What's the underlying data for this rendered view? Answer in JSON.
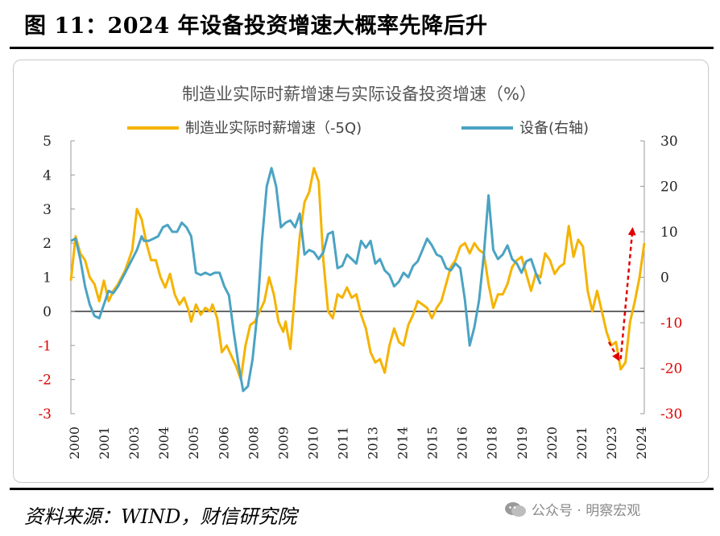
{
  "figure_title": "图 11：2024 年设备投资增速大概率先降后升",
  "source": "资料来源：WIND，财信研究院",
  "watermark": "公众号 · 明察宏观",
  "colors": {
    "series1": "#F5B300",
    "series2": "#4BA3C3",
    "arrow": "#E00000",
    "negative_tick": "#E00000"
  },
  "chart_data": {
    "type": "line",
    "title": "制造业实际时薪增速与实际设备投资增速（%）",
    "legend_position": "top",
    "grid": false,
    "x_ticks": [
      "2000",
      "2001",
      "2003",
      "2004",
      "2005",
      "2006",
      "2008",
      "2009",
      "2010",
      "2011",
      "2013",
      "2014",
      "2015",
      "2016",
      "2018",
      "2019",
      "2020",
      "2021",
      "2023",
      "2024"
    ],
    "y_left": {
      "range": [
        -3,
        5
      ],
      "ticks": [
        "5",
        "4",
        "3",
        "2",
        "1",
        "0",
        "-1",
        "-2",
        "-3"
      ]
    },
    "y_right": {
      "range": [
        -30,
        30
      ],
      "ticks": [
        "30",
        "20",
        "10",
        "0",
        "-10",
        "-20",
        "-30"
      ]
    },
    "series": [
      {
        "name": "制造业实际时薪增速（-5Q)",
        "axis": "left",
        "color": "#F5B300",
        "points": [
          [
            2000.0,
            0.9
          ],
          [
            2000.2,
            2.2
          ],
          [
            2000.4,
            1.7
          ],
          [
            2000.6,
            1.5
          ],
          [
            2000.8,
            1.0
          ],
          [
            2001.0,
            0.8
          ],
          [
            2001.2,
            0.3
          ],
          [
            2001.4,
            0.9
          ],
          [
            2001.6,
            0.3
          ],
          [
            2001.8,
            0.6
          ],
          [
            2002.0,
            0.8
          ],
          [
            2002.3,
            1.2
          ],
          [
            2002.6,
            1.8
          ],
          [
            2002.8,
            3.0
          ],
          [
            2003.0,
            2.7
          ],
          [
            2003.2,
            2.0
          ],
          [
            2003.4,
            1.5
          ],
          [
            2003.6,
            1.5
          ],
          [
            2003.8,
            1.0
          ],
          [
            2004.0,
            0.7
          ],
          [
            2004.2,
            1.1
          ],
          [
            2004.4,
            0.5
          ],
          [
            2004.6,
            0.2
          ],
          [
            2004.8,
            0.4
          ],
          [
            2005.0,
            0.0
          ],
          [
            2005.1,
            -0.3
          ],
          [
            2005.3,
            0.2
          ],
          [
            2005.5,
            -0.1
          ],
          [
            2005.7,
            0.1
          ],
          [
            2005.9,
            0.0
          ],
          [
            2006.0,
            0.2
          ],
          [
            2006.2,
            -0.2
          ],
          [
            2006.4,
            -1.2
          ],
          [
            2006.6,
            -1.0
          ],
          [
            2006.8,
            -1.3
          ],
          [
            2007.0,
            -1.6
          ],
          [
            2007.2,
            -2.0
          ],
          [
            2007.4,
            -1.0
          ],
          [
            2007.6,
            -0.4
          ],
          [
            2007.8,
            -0.3
          ],
          [
            2008.0,
            0.0
          ],
          [
            2008.2,
            0.3
          ],
          [
            2008.4,
            1.0
          ],
          [
            2008.6,
            0.5
          ],
          [
            2008.8,
            -0.3
          ],
          [
            2009.0,
            -0.6
          ],
          [
            2009.1,
            -0.3
          ],
          [
            2009.3,
            -1.1
          ],
          [
            2009.5,
            0.6
          ],
          [
            2009.7,
            2.2
          ],
          [
            2009.9,
            3.2
          ],
          [
            2010.1,
            3.5
          ],
          [
            2010.3,
            4.2
          ],
          [
            2010.5,
            3.8
          ],
          [
            2010.7,
            1.5
          ],
          [
            2010.9,
            0.0
          ],
          [
            2011.1,
            -0.2
          ],
          [
            2011.3,
            0.5
          ],
          [
            2011.5,
            0.4
          ],
          [
            2011.7,
            0.7
          ],
          [
            2011.9,
            0.4
          ],
          [
            2012.1,
            0.5
          ],
          [
            2012.3,
            -0.1
          ],
          [
            2012.5,
            -0.5
          ],
          [
            2012.7,
            -1.2
          ],
          [
            2012.9,
            -1.5
          ],
          [
            2013.1,
            -1.4
          ],
          [
            2013.3,
            -1.8
          ],
          [
            2013.5,
            -1.0
          ],
          [
            2013.7,
            -0.5
          ],
          [
            2013.9,
            -0.9
          ],
          [
            2014.1,
            -1.0
          ],
          [
            2014.3,
            -0.4
          ],
          [
            2014.5,
            -0.1
          ],
          [
            2014.7,
            0.3
          ],
          [
            2014.9,
            0.2
          ],
          [
            2015.1,
            0.1
          ],
          [
            2015.3,
            -0.2
          ],
          [
            2015.5,
            0.1
          ],
          [
            2015.7,
            0.3
          ],
          [
            2015.9,
            0.8
          ],
          [
            2016.1,
            1.3
          ],
          [
            2016.3,
            1.5
          ],
          [
            2016.5,
            1.9
          ],
          [
            2016.7,
            2.0
          ],
          [
            2016.9,
            1.7
          ],
          [
            2017.1,
            2.0
          ],
          [
            2017.3,
            1.8
          ],
          [
            2017.5,
            1.7
          ],
          [
            2017.7,
            0.8
          ],
          [
            2017.9,
            0.1
          ],
          [
            2018.1,
            0.5
          ],
          [
            2018.3,
            0.5
          ],
          [
            2018.5,
            0.8
          ],
          [
            2018.7,
            1.3
          ],
          [
            2018.9,
            1.5
          ],
          [
            2019.1,
            1.6
          ],
          [
            2019.3,
            1.1
          ],
          [
            2019.5,
            0.6
          ],
          [
            2019.7,
            1.1
          ],
          [
            2019.9,
            1.0
          ],
          [
            2020.1,
            1.7
          ],
          [
            2020.3,
            1.5
          ],
          [
            2020.5,
            1.1
          ],
          [
            2020.7,
            1.3
          ],
          [
            2020.9,
            1.4
          ],
          [
            2021.1,
            2.5
          ],
          [
            2021.3,
            1.6
          ],
          [
            2021.5,
            2.1
          ],
          [
            2021.7,
            1.9
          ],
          [
            2021.9,
            0.6
          ],
          [
            2022.1,
            0.0
          ],
          [
            2022.3,
            0.6
          ],
          [
            2022.5,
            0.0
          ],
          [
            2022.7,
            -0.6
          ],
          [
            2022.9,
            -1.0
          ],
          [
            2023.1,
            -0.9
          ],
          [
            2023.3,
            -1.7
          ],
          [
            2023.5,
            -1.5
          ],
          [
            2023.7,
            -0.3
          ],
          [
            2023.9,
            0.3
          ],
          [
            2024.1,
            1.0
          ],
          [
            2024.3,
            2.0
          ]
        ]
      },
      {
        "name": "设备(右轴)",
        "axis": "right",
        "color": "#4BA3C3",
        "points": [
          [
            2000.0,
            8.0
          ],
          [
            2000.2,
            8.5
          ],
          [
            2000.4,
            4.0
          ],
          [
            2000.6,
            -2.0
          ],
          [
            2000.8,
            -6.0
          ],
          [
            2001.0,
            -8.5
          ],
          [
            2001.2,
            -9.0
          ],
          [
            2001.4,
            -6.0
          ],
          [
            2001.6,
            -3.0
          ],
          [
            2001.8,
            -3.5
          ],
          [
            2002.0,
            -2.0
          ],
          [
            2002.3,
            1.0
          ],
          [
            2002.6,
            4.0
          ],
          [
            2002.8,
            6.0
          ],
          [
            2003.0,
            9.0
          ],
          [
            2003.1,
            8.0
          ],
          [
            2003.3,
            8.0
          ],
          [
            2003.5,
            8.5
          ],
          [
            2003.7,
            9.0
          ],
          [
            2003.9,
            11.0
          ],
          [
            2004.1,
            11.5
          ],
          [
            2004.3,
            10.0
          ],
          [
            2004.5,
            10.0
          ],
          [
            2004.7,
            12.0
          ],
          [
            2004.9,
            11.0
          ],
          [
            2005.1,
            9.0
          ],
          [
            2005.3,
            1.0
          ],
          [
            2005.5,
            0.5
          ],
          [
            2005.7,
            1.0
          ],
          [
            2005.9,
            0.5
          ],
          [
            2006.1,
            1.0
          ],
          [
            2006.3,
            1.0
          ],
          [
            2006.5,
            -2.0
          ],
          [
            2006.7,
            -4.0
          ],
          [
            2006.9,
            -12.0
          ],
          [
            2007.1,
            -19.0
          ],
          [
            2007.3,
            -25.0
          ],
          [
            2007.5,
            -24.0
          ],
          [
            2007.7,
            -18.0
          ],
          [
            2007.9,
            -8.0
          ],
          [
            2008.1,
            8.0
          ],
          [
            2008.3,
            20.0
          ],
          [
            2008.5,
            24.0
          ],
          [
            2008.7,
            20.0
          ],
          [
            2008.9,
            11.0
          ],
          [
            2009.1,
            12.0
          ],
          [
            2009.3,
            12.5
          ],
          [
            2009.5,
            11.0
          ],
          [
            2009.7,
            14.0
          ],
          [
            2009.9,
            5.0
          ],
          [
            2010.1,
            6.0
          ],
          [
            2010.3,
            5.5
          ],
          [
            2010.5,
            4.0
          ],
          [
            2010.7,
            5.5
          ],
          [
            2010.9,
            9.5
          ],
          [
            2011.1,
            10.0
          ],
          [
            2011.3,
            2.0
          ],
          [
            2011.5,
            2.5
          ],
          [
            2011.7,
            5.0
          ],
          [
            2011.9,
            4.0
          ],
          [
            2012.1,
            3.0
          ],
          [
            2012.3,
            8.0
          ],
          [
            2012.5,
            6.5
          ],
          [
            2012.7,
            8.0
          ],
          [
            2012.9,
            3.0
          ],
          [
            2013.1,
            4.0
          ],
          [
            2013.3,
            1.5
          ],
          [
            2013.5,
            0.5
          ],
          [
            2013.7,
            -2.0
          ],
          [
            2013.9,
            -1.0
          ],
          [
            2014.1,
            1.0
          ],
          [
            2014.3,
            0.0
          ],
          [
            2014.5,
            2.5
          ],
          [
            2014.7,
            3.5
          ],
          [
            2014.9,
            6.0
          ],
          [
            2015.1,
            8.5
          ],
          [
            2015.3,
            7.0
          ],
          [
            2015.5,
            5.0
          ],
          [
            2015.7,
            4.5
          ],
          [
            2015.9,
            2.0
          ],
          [
            2016.1,
            1.5
          ],
          [
            2016.3,
            3.0
          ],
          [
            2016.5,
            2.0
          ],
          [
            2016.7,
            -5.0
          ],
          [
            2016.9,
            -15.0
          ],
          [
            2017.1,
            -11.0
          ],
          [
            2017.3,
            -5.0
          ],
          [
            2017.5,
            5.0
          ],
          [
            2017.7,
            18.0
          ],
          [
            2017.9,
            6.0
          ],
          [
            2018.1,
            4.0
          ],
          [
            2018.3,
            5.0
          ],
          [
            2018.5,
            7.0
          ],
          [
            2018.7,
            4.0
          ],
          [
            2018.9,
            3.0
          ],
          [
            2019.1,
            1.0
          ],
          [
            2019.3,
            3.5
          ],
          [
            2019.5,
            4.0
          ],
          [
            2019.7,
            1.0
          ],
          [
            2019.9,
            -1.5
          ]
        ]
      }
    ],
    "annotations": [
      {
        "type": "arrow",
        "color": "#E00000",
        "style": "dashed",
        "from": [
          2022.8,
          -0.9
        ],
        "to": [
          2023.2,
          -1.4
        ]
      },
      {
        "type": "arrow",
        "color": "#E00000",
        "style": "dashed",
        "from": [
          2023.3,
          -1.4
        ],
        "to": [
          2023.8,
          2.4
        ]
      }
    ]
  }
}
